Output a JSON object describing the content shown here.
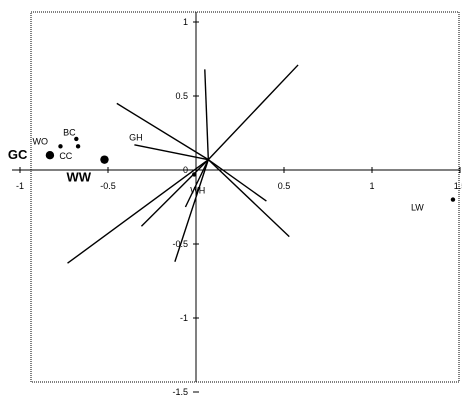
{
  "chart_data": {
    "type": "scatter",
    "title": "",
    "xlabel": "",
    "ylabel": "",
    "xlim": [
      -1.0,
      1.5
    ],
    "ylim": [
      -1.5,
      1.0
    ],
    "x_ticks": [
      {
        "value": -1,
        "label": "-1"
      },
      {
        "value": -0.5,
        "label": "-0.5"
      },
      {
        "value": 0.5,
        "label": "0.5"
      },
      {
        "value": 1,
        "label": "1"
      },
      {
        "value": 1.5,
        "label": "1.5"
      }
    ],
    "y_ticks": [
      {
        "value": 1,
        "label": "1"
      },
      {
        "value": 0.5,
        "label": "0.5"
      },
      {
        "value": 0,
        "label": "0"
      },
      {
        "value": -0.5,
        "label": "-0.5"
      },
      {
        "value": -1,
        "label": "-1"
      },
      {
        "value": -1.5,
        "label": "-1.5"
      }
    ],
    "grid": false,
    "points": [
      {
        "label": "GC",
        "x": -0.83,
        "y": 0.1,
        "size": "large",
        "bold": true
      },
      {
        "label": "WW",
        "x": -0.52,
        "y": 0.07,
        "size": "large",
        "bold": true
      },
      {
        "label": "WO",
        "x": -0.77,
        "y": 0.16,
        "size": "small",
        "bold": false
      },
      {
        "label": "BC",
        "x": -0.67,
        "y": 0.16,
        "size": "small",
        "bold": false
      },
      {
        "label": "CC",
        "x": -0.68,
        "y": 0.21,
        "size": "small",
        "bold": false
      },
      {
        "label": "WH",
        "x": -0.01,
        "y": -0.03,
        "size": "small",
        "bold": false
      },
      {
        "label": "LW",
        "x": 1.46,
        "y": -0.2,
        "size": "small",
        "bold": false
      }
    ],
    "point_label_offsets": {
      "GC": {
        "dx": -42,
        "dy": 4,
        "size": 13
      },
      "WW": {
        "dx": -38,
        "dy": 22,
        "size": 13
      },
      "WO": {
        "dx": -28,
        "dy": -2,
        "size": 9
      },
      "BC": {
        "dx": -15,
        "dy": -11,
        "size": 9
      },
      "CC": {
        "dx": -17,
        "dy": 20,
        "size": 9
      },
      "WH": {
        "dx": -4,
        "dy": 19,
        "size": 9
      },
      "LW": {
        "dx": -42,
        "dy": 11,
        "size": 9
      }
    },
    "extra_labels": [
      {
        "text": "GH",
        "x": -0.38,
        "y": 0.2
      }
    ],
    "vectors": [
      {
        "x": 0.58,
        "y": 0.71
      },
      {
        "x": 0.05,
        "y": 0.68
      },
      {
        "x": -0.45,
        "y": 0.45
      },
      {
        "x": -0.35,
        "y": 0.17
      },
      {
        "x": 0.53,
        "y": -0.45
      },
      {
        "x": 0.4,
        "y": -0.21
      },
      {
        "x": -0.73,
        "y": -0.63
      },
      {
        "x": -0.31,
        "y": -0.38
      },
      {
        "x": -0.12,
        "y": -0.62
      },
      {
        "x": -0.06,
        "y": -0.25
      }
    ],
    "vector_origin": {
      "x": 0.07,
      "y": 0.07
    }
  }
}
